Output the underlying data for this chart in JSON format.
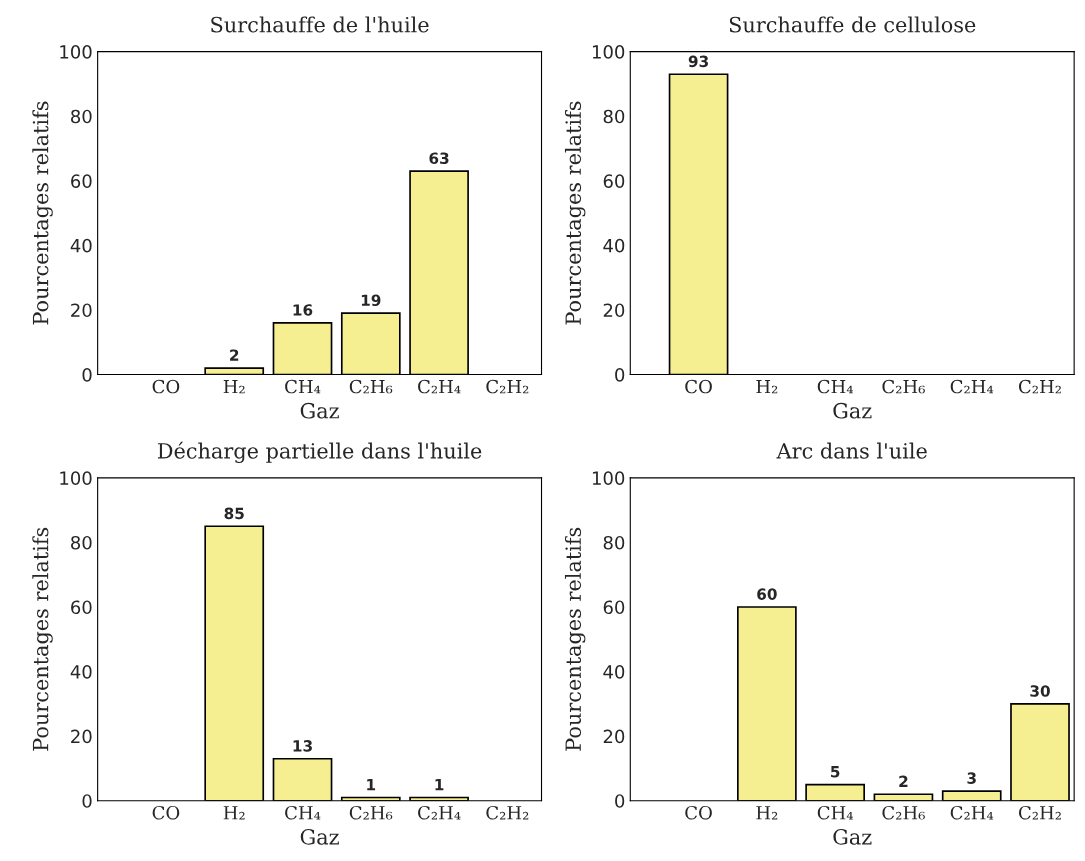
{
  "chart_data": [
    {
      "type": "bar",
      "title": "Surchauffe de l'huile",
      "xlabel": "Gaz",
      "ylabel": "Pourcentages relatifs",
      "categories": [
        "CO",
        "H₂",
        "CH₄",
        "C₂H₆",
        "C₂H₄",
        "C₂H₂"
      ],
      "values": [
        null,
        2,
        16,
        19,
        63,
        null
      ],
      "color": "#f5ef92",
      "ylim": [
        0,
        100
      ],
      "yticks": [
        0,
        20,
        40,
        60,
        80,
        100
      ],
      "data_labels": true,
      "grid": false
    },
    {
      "type": "bar",
      "title": "Surchauffe de cellulose",
      "xlabel": "Gaz",
      "ylabel": "Pourcentages relatifs",
      "categories": [
        "CO",
        "H₂",
        "CH₄",
        "C₂H₆",
        "C₂H₄",
        "C₂H₂"
      ],
      "values": [
        93,
        null,
        null,
        null,
        null,
        null
      ],
      "color": "#f5ef92",
      "ylim": [
        0,
        100
      ],
      "yticks": [
        0,
        20,
        40,
        60,
        80,
        100
      ],
      "data_labels": true,
      "grid": false
    },
    {
      "type": "bar",
      "title": "Décharge partielle dans l'huile",
      "xlabel": "Gaz",
      "ylabel": "Pourcentages relatifs",
      "categories": [
        "CO",
        "H₂",
        "CH₄",
        "C₂H₆",
        "C₂H₄",
        "C₂H₂"
      ],
      "values": [
        null,
        85,
        13,
        1,
        1,
        null
      ],
      "color": "#f5ef92",
      "ylim": [
        0,
        100
      ],
      "yticks": [
        0,
        20,
        40,
        60,
        80,
        100
      ],
      "data_labels": true,
      "grid": false
    },
    {
      "type": "bar",
      "title": "Arc dans l'uile",
      "xlabel": "Gaz",
      "ylabel": "Pourcentages relatifs",
      "categories": [
        "CO",
        "H₂",
        "CH₄",
        "C₂H₆",
        "C₂H₄",
        "C₂H₂"
      ],
      "values": [
        null,
        60,
        5,
        2,
        3,
        30
      ],
      "color": "#f5ef92",
      "ylim": [
        0,
        100
      ],
      "yticks": [
        0,
        20,
        40,
        60,
        80,
        100
      ],
      "data_labels": true,
      "grid": false
    }
  ]
}
